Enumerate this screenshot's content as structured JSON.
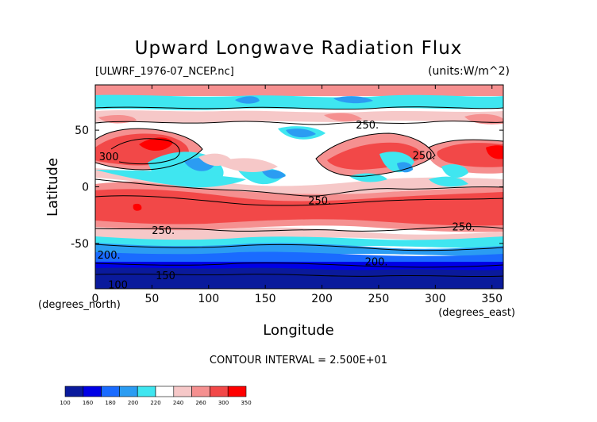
{
  "title": "Upward Longwave Radiation Flux",
  "file_label": "[ULWRF_1976-07_NCEP.nc]",
  "units_label": "(units:W/m^2)",
  "contour_interval_text": "CONTOUR INTERVAL = 2.500E+01",
  "chart_data": {
    "type": "heatmap",
    "title": "Upward Longwave Radiation Flux",
    "xlabel": "Longitude",
    "ylabel": "Latitude",
    "x_unit_label": "(degrees_east)",
    "y_unit_label": "(degrees_north)",
    "xlim": [
      0,
      360
    ],
    "ylim": [
      -90,
      90
    ],
    "x_ticks": [
      0,
      50,
      100,
      150,
      200,
      250,
      300,
      350
    ],
    "y_ticks": [
      -50,
      0,
      50
    ],
    "units": "W/m^2",
    "contour_interval": 25,
    "contour_labels": [
      {
        "value": "300",
        "lon": 12,
        "lat": 27
      },
      {
        "value": "250.",
        "lon": 240,
        "lat": 55
      },
      {
        "value": "250.",
        "lon": 290,
        "lat": 28
      },
      {
        "value": "250.",
        "lon": 198,
        "lat": -12
      },
      {
        "value": "250.",
        "lon": 60,
        "lat": -38
      },
      {
        "value": "250.",
        "lon": 325,
        "lat": -35
      },
      {
        "value": "200.",
        "lon": 12,
        "lat": -60
      },
      {
        "value": "200.",
        "lon": 248,
        "lat": -66
      },
      {
        "value": "150",
        "lon": 62,
        "lat": -78
      },
      {
        "value": "100",
        "lon": 20,
        "lat": -86
      }
    ],
    "colorbar": {
      "ticks": [
        "100",
        "160",
        "180",
        "200",
        "220",
        "240",
        "260",
        "300",
        "350"
      ],
      "colors": [
        "#0a1a9c",
        "#0000e6",
        "#1a6bff",
        "#2b9cf2",
        "#3fe6f0",
        "#ffffff",
        "#f6c8c8",
        "#f59090",
        "#f24848",
        "#ff0000"
      ]
    },
    "colors": {
      "lowest": "#0a1a9c",
      "low": "#0000e6",
      "mid_low": "#2b9cf2",
      "cyan": "#3fe6f0",
      "neutral": "#ffffff",
      "light_pink": "#f6c8c8",
      "pink": "#f59090",
      "red": "#f24848",
      "highest": "#ff0000"
    }
  }
}
